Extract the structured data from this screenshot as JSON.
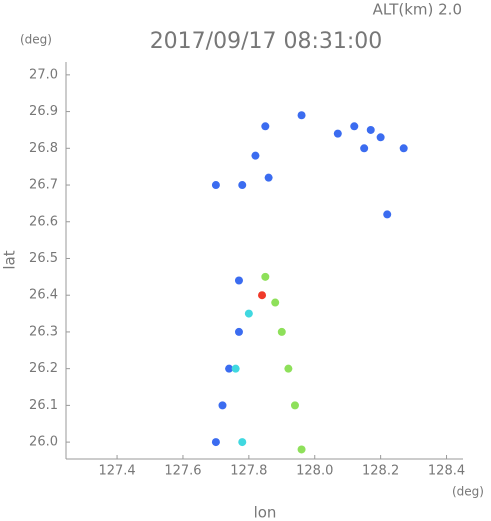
{
  "chart_data": {
    "type": "scatter",
    "title": "2017/09/17 08:31:00",
    "subtitle": "ALT(km) 2.0",
    "x_label": "lon",
    "y_label": "lat",
    "x_unit": "(deg)",
    "y_unit": "(deg)",
    "xlim": [
      127.245,
      128.45
    ],
    "ylim": [
      25.954,
      27.035
    ],
    "xticks": [
      127.4,
      127.6,
      127.8,
      {
        "value": 128.0,
        "label": "128.0"
      },
      128.2,
      128.4
    ],
    "yticks": [
      {
        "value": 26.0,
        "label": "26.0"
      },
      26.1,
      26.2,
      26.3,
      26.4,
      26.5,
      26.6,
      26.7,
      26.8,
      26.9,
      {
        "value": 27.0,
        "label": "27.0"
      }
    ],
    "series": [
      {
        "color": "#3b6cf0",
        "x": [
          127.85,
          127.96,
          128.07,
          128.12,
          128.17,
          128.2,
          128.15,
          128.27,
          127.82,
          127.86,
          127.78,
          127.7,
          128.22,
          127.77,
          127.72,
          127.7,
          127.74,
          127.77
        ],
        "y": [
          26.86,
          26.89,
          26.84,
          26.86,
          26.85,
          26.83,
          26.8,
          26.8,
          26.78,
          26.72,
          26.7,
          26.7,
          26.62,
          26.44,
          26.1,
          26.0,
          26.2,
          26.3
        ]
      },
      {
        "color": "#8ee05a",
        "x": [
          127.88,
          127.9,
          127.92,
          127.94,
          127.96,
          127.85
        ],
        "y": [
          26.38,
          26.3,
          26.2,
          26.1,
          25.98,
          26.45
        ]
      },
      {
        "color": "#40d8e0",
        "x": [
          127.8,
          127.76,
          127.78
        ],
        "y": [
          26.35,
          26.2,
          26.0
        ]
      },
      {
        "color": "#f03a2a",
        "x": [
          127.84
        ],
        "y": [
          26.4
        ]
      }
    ]
  }
}
